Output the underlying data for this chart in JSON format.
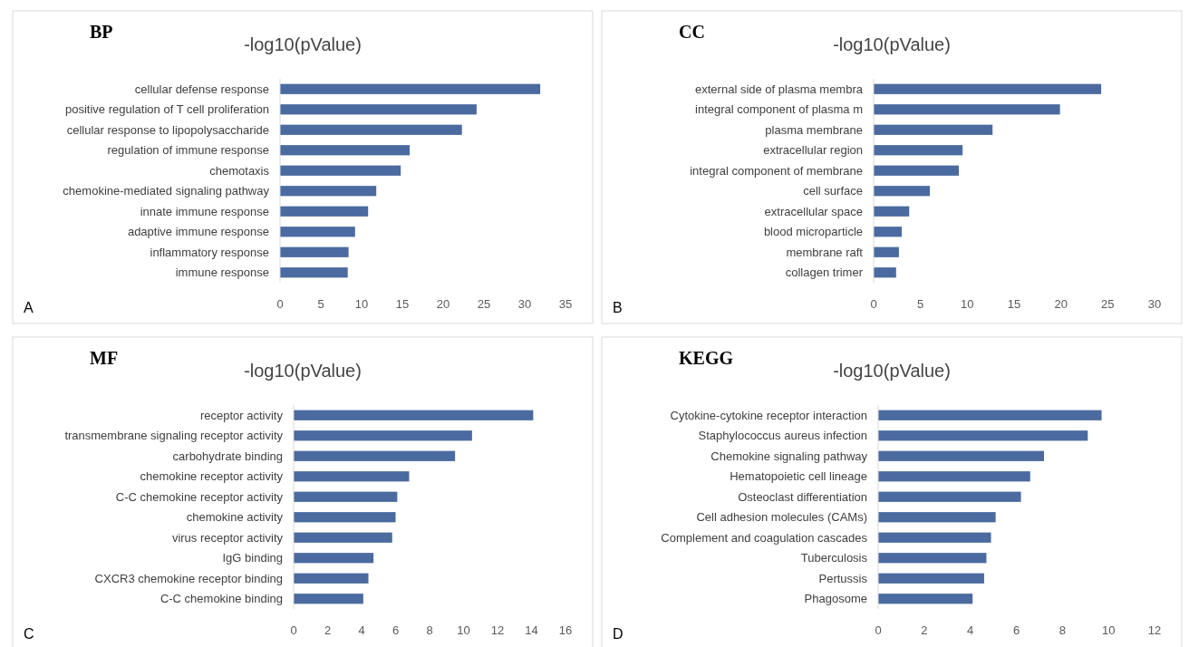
{
  "chart_data": [
    {
      "type": "bar",
      "orientation": "horizontal",
      "title": "BP",
      "subtitle": "-log10(pValue)",
      "annotations": [
        "A"
      ],
      "categories": [
        "cellular defense response",
        "positive regulation of T cell proliferation",
        "cellular response to lipopolysaccharide",
        "regulation of immune response",
        "chemotaxis",
        "chemokine-mediated signaling pathway",
        "innate immune response",
        "adaptive immune response",
        "inflammatory response",
        "immune response"
      ],
      "values": [
        31.9,
        24.1,
        22.3,
        15.9,
        14.8,
        11.8,
        10.8,
        9.2,
        8.4,
        8.3
      ],
      "color": "#4a6aa0",
      "xlim": [
        0,
        35
      ],
      "xticks": [
        0,
        5,
        10,
        15,
        20,
        25,
        30,
        35
      ]
    },
    {
      "type": "bar",
      "orientation": "horizontal",
      "title": "CC",
      "subtitle": "-log10(pValue)",
      "annotations": [
        "B"
      ],
      "categories": [
        "external side of plasma membra",
        "integral component of plasma m",
        "plasma membrane",
        "extracellular region",
        "integral component of membrane",
        "cell surface",
        "extracellular space",
        "blood microparticle",
        "membrane raft",
        "collagen trimer"
      ],
      "values": [
        24.3,
        19.9,
        12.7,
        9.5,
        9.1,
        6.0,
        3.8,
        3.0,
        2.7,
        2.4
      ],
      "color": "#4a6aa0",
      "xlim": [
        0,
        30
      ],
      "xticks": [
        0,
        5,
        10,
        15,
        20,
        25,
        30
      ]
    },
    {
      "type": "bar",
      "orientation": "horizontal",
      "title": "MF",
      "subtitle": "-log10(pValue)",
      "annotations": [
        "C"
      ],
      "categories": [
        "receptor activity",
        "transmembrane signaling receptor activity",
        "carbohydrate binding",
        "chemokine receptor activity",
        "C-C chemokine receptor activity",
        "chemokine activity",
        "virus receptor activity",
        "IgG binding",
        "CXCR3 chemokine receptor binding",
        "C-C chemokine binding"
      ],
      "values": [
        14.1,
        10.5,
        9.5,
        6.8,
        6.1,
        6.0,
        5.8,
        4.7,
        4.4,
        4.1
      ],
      "color": "#4a6aa0",
      "xlim": [
        0,
        16
      ],
      "xticks": [
        0,
        2,
        4,
        6,
        8,
        10,
        12,
        14,
        16
      ]
    },
    {
      "type": "bar",
      "orientation": "horizontal",
      "title": "KEGG",
      "subtitle": "-log10(pValue)",
      "annotations": [
        "D"
      ],
      "categories": [
        "Cytokine-cytokine receptor interaction",
        "Staphylococcus aureus infection",
        "Chemokine signaling pathway",
        "Hematopoietic cell lineage",
        "Osteoclast differentiation",
        "Cell adhesion molecules (CAMs)",
        "Complement and coagulation cascades",
        "Tuberculosis",
        "Pertussis",
        "Phagosome"
      ],
      "values": [
        9.7,
        9.1,
        7.2,
        6.6,
        6.2,
        5.1,
        4.9,
        4.7,
        4.6,
        4.1
      ],
      "color": "#4a6aa0",
      "xlim": [
        0,
        12
      ],
      "xticks": [
        0,
        2,
        4,
        6,
        8,
        10,
        12
      ]
    }
  ]
}
